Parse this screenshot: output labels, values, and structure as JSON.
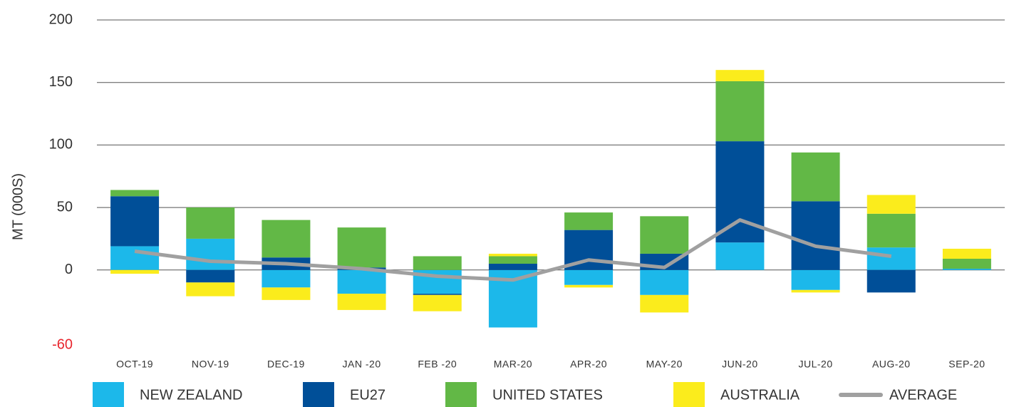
{
  "chart_data": {
    "type": "stacked_bar_line",
    "y_axis_label": "MT (000S)",
    "categories": [
      "OCT-19",
      "NOV-19",
      "DEC-19",
      "JAN -20",
      "FEB -20",
      "MAR-20",
      "APR-20",
      "MAY-20",
      "JUN-20",
      "JUL-20",
      "AUG-20",
      "SEP-20"
    ],
    "series": [
      {
        "name": "NEW ZEALAND",
        "color": "#1cb8ea",
        "values": [
          19,
          25,
          -14,
          -19,
          -19,
          -46,
          -12,
          -20,
          22,
          -16,
          18,
          1
        ]
      },
      {
        "name": "EU27",
        "color": "#004f98",
        "values": [
          40,
          -10,
          10,
          2,
          -1,
          5,
          32,
          13,
          81,
          55,
          -18,
          0
        ]
      },
      {
        "name": "UNITED STATES",
        "color": "#62b846",
        "values": [
          5,
          25,
          30,
          32,
          11,
          6,
          14,
          30,
          48,
          39,
          27,
          8
        ]
      },
      {
        "name": "AUSTRALIA",
        "color": "#fbec1c",
        "values": [
          -3,
          -11,
          -10,
          -13,
          -13,
          2,
          -2,
          -14,
          9,
          -2,
          15,
          8
        ]
      },
      {
        "name": "AVERAGE",
        "color": "#a0a0a0",
        "type": "line",
        "values": [
          15,
          7,
          5,
          1,
          -5,
          -8,
          8,
          2,
          40,
          19,
          11,
          null
        ]
      }
    ],
    "ylim": [
      -60,
      200
    ],
    "yticks": [
      200,
      150,
      100,
      50,
      0,
      -60
    ],
    "grid": true,
    "legend": "bottom"
  }
}
